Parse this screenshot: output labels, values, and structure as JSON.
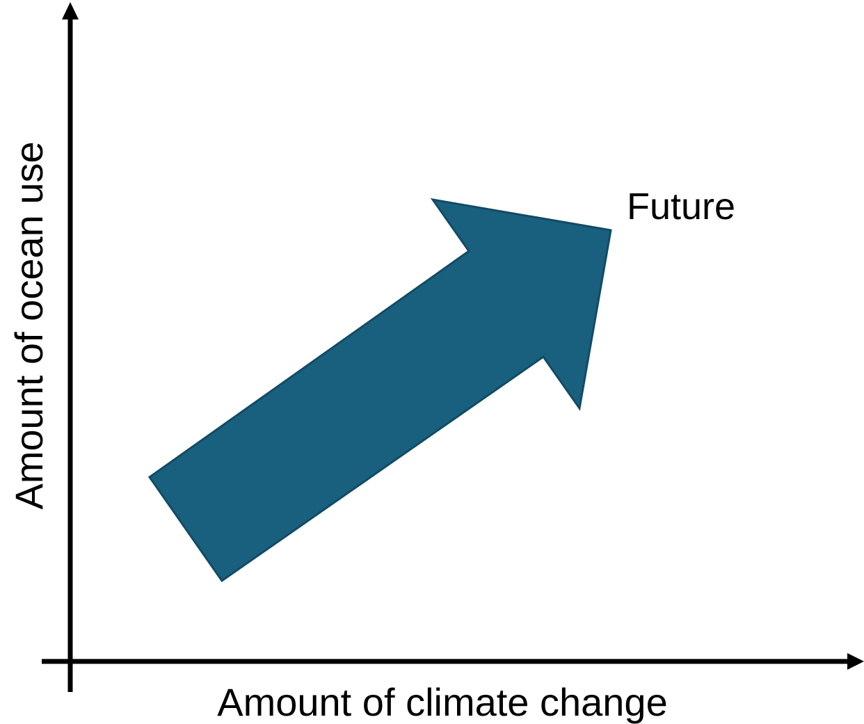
{
  "diagram": {
    "x_axis_label": "Amount of climate change",
    "y_axis_label": "Amount of ocean use",
    "arrow_label": "Future",
    "colors": {
      "axis": "#000000",
      "arrow_fill": "#19607F",
      "arrow_stroke": "#124B64",
      "background": "#FFFFFF"
    }
  }
}
